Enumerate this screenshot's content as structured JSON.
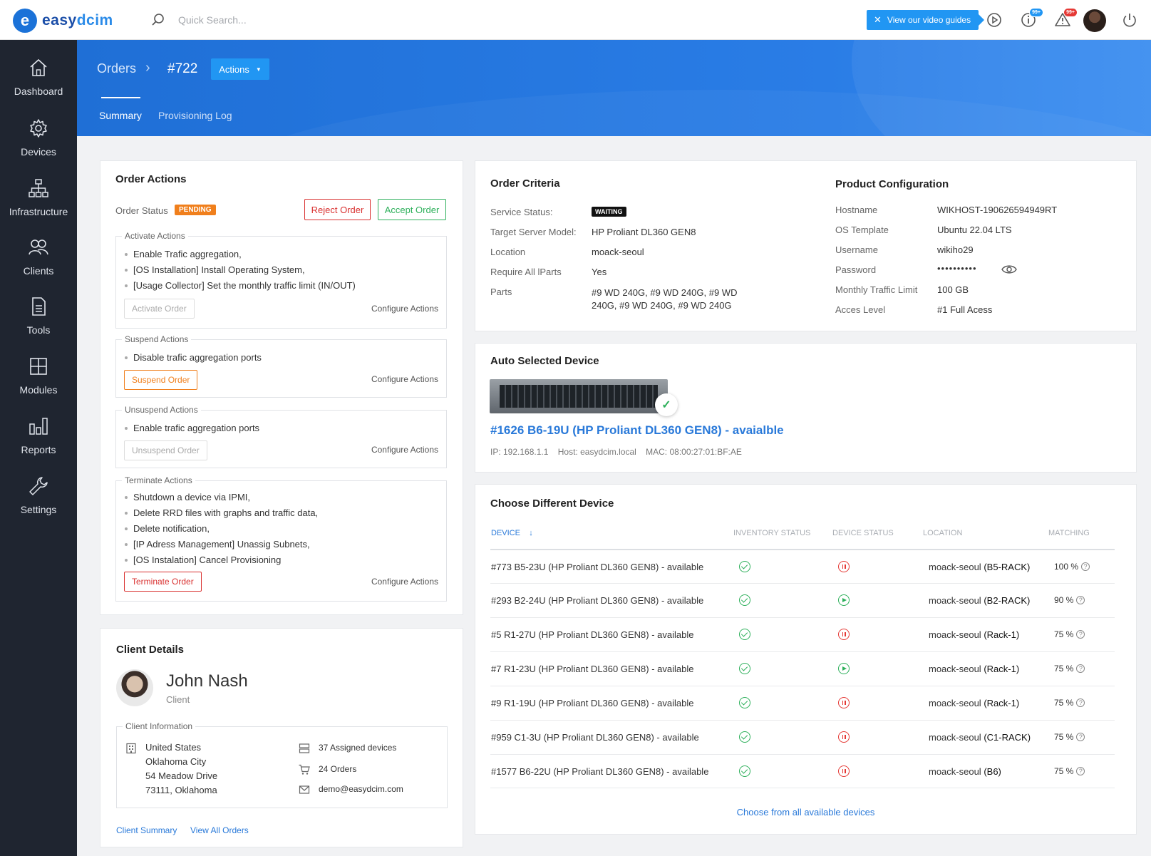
{
  "app": {
    "logo_letter": "e",
    "logo_text_a": "easy",
    "logo_text_b": "dcim"
  },
  "topbar": {
    "search_placeholder": "Quick Search...",
    "video_guides": "View our video guides",
    "info_badge": "99+",
    "alert_badge": "99+"
  },
  "sidebar": {
    "items": [
      {
        "label": "Dashboard",
        "icon": "home-icon"
      },
      {
        "label": "Devices",
        "icon": "gear-icon"
      },
      {
        "label": "Infrastructure",
        "icon": "sitemap-icon"
      },
      {
        "label": "Clients",
        "icon": "users-icon"
      },
      {
        "label": "Tools",
        "icon": "document-icon"
      },
      {
        "label": "Modules",
        "icon": "grid-icon"
      },
      {
        "label": "Reports",
        "icon": "bar-chart-icon"
      },
      {
        "label": "Settings",
        "icon": "wrench-icon"
      }
    ]
  },
  "header": {
    "breadcrumb_root": "Orders",
    "breadcrumb_sep": "›",
    "order_id": "#722",
    "actions_label": "Actions",
    "tabs": [
      {
        "label": "Summary",
        "active": true
      },
      {
        "label": "Provisioning Log",
        "active": false
      }
    ]
  },
  "order_actions": {
    "title": "Order Actions",
    "status_label": "Order Status",
    "status_value": "PENDING",
    "reject_label": "Reject Order",
    "accept_label": "Accept Order",
    "configure_label": "Configure Actions",
    "groups": [
      {
        "legend": "Activate Actions",
        "items": [
          "Enable Trafic aggregation,",
          "[OS Installation] Install Operating System,",
          "[Usage Collector] Set the monthly traffic limit (IN/OUT)"
        ],
        "button": "Activate Order"
      },
      {
        "legend": "Suspend Actions",
        "items": [
          "Disable trafic aggregation ports"
        ],
        "button": "Suspend Order"
      },
      {
        "legend": "Unsuspend Actions",
        "items": [
          "Enable trafic aggregation ports"
        ],
        "button": "Unsuspend Order"
      },
      {
        "legend": "Terminate Actions",
        "items": [
          "Shutdown a device via IPMI,",
          "Delete RRD files with graphs and traffic data,",
          "Delete notification,",
          "[IP Adress Management] Unassig Subnets,",
          "[OS Instalation] Cancel Provisioning"
        ],
        "button": "Terminate Order"
      }
    ]
  },
  "order_criteria": {
    "title": "Order Criteria",
    "rows": [
      {
        "label": "Service Status:",
        "value": "WAITING"
      },
      {
        "label": "Target Server Model:",
        "value": "HP Proliant DL360 GEN8"
      },
      {
        "label": "Location",
        "value": "moack-seoul"
      },
      {
        "label": "Require All lParts",
        "value": "Yes"
      },
      {
        "label": "Parts",
        "value": "#9 WD 240G, #9 WD 240G, #9 WD 240G,  #9 WD 240G, #9 WD 240G"
      }
    ]
  },
  "product_config": {
    "title": "Product Configuration",
    "rows": [
      {
        "label": "Hostname",
        "value": "WIKHOST-190626594949RT"
      },
      {
        "label": "OS Template",
        "value": "Ubuntu 22.04 LTS"
      },
      {
        "label": "Username",
        "value": "wikiho29"
      },
      {
        "label": "Password",
        "value": "••••••••••"
      },
      {
        "label": "Monthly Traffic Limit",
        "value": "100 GB"
      },
      {
        "label": "Acces Level",
        "value": "#1 Full Acess"
      }
    ]
  },
  "auto_device": {
    "title": "Auto Selected Device",
    "link": "#1626 B6-19U (HP Proliant DL360 GEN8) - avaialble",
    "ip": "IP: 192.168.1.1",
    "host": "Host: easydcim.local",
    "mac": "MAC: 08:00:27:01:BF:AE"
  },
  "choose_device": {
    "title": "Choose Different Device",
    "columns": {
      "device": "DEVICE",
      "sort_arrow": "↓",
      "inventory": "INVENTORY STATUS",
      "status": "DEVICE STATUS",
      "location": "LOCATION",
      "matching": "MATCHING"
    },
    "rows": [
      {
        "device": "#773 B5-23U (HP Proliant DL360 GEN8) - available",
        "inventory": "ok",
        "status": "paused",
        "loc_prefix": "moack-seoul",
        "loc_rack": "(B5-RACK)",
        "match": "100 %"
      },
      {
        "device": "#293 B2-24U (HP Proliant DL360 GEN8) - available",
        "inventory": "ok",
        "status": "running",
        "loc_prefix": "moack-seoul",
        "loc_rack": "(B2-RACK)",
        "match": "90 %"
      },
      {
        "device": "#5 R1-27U (HP Proliant DL360 GEN8) - available",
        "inventory": "ok",
        "status": "paused",
        "loc_prefix": "moack-seoul",
        "loc_rack": "(Rack-1)",
        "match": "75 %"
      },
      {
        "device": "#7 R1-23U (HP Proliant DL360 GEN8) - available",
        "inventory": "ok",
        "status": "running",
        "loc_prefix": "moack-seoul",
        "loc_rack": "(Rack-1)",
        "match": "75 %"
      },
      {
        "device": "#9 R1-19U (HP Proliant DL360 GEN8) - available",
        "inventory": "ok",
        "status": "paused",
        "loc_prefix": "moack-seoul",
        "loc_rack": "(Rack-1)",
        "match": "75 %"
      },
      {
        "device": "#959 C1-3U (HP Proliant DL360 GEN8) - available",
        "inventory": "ok",
        "status": "paused",
        "loc_prefix": "moack-seoul",
        "loc_rack": "(C1-RACK)",
        "match": "75 %"
      },
      {
        "device": "#1577 B6-22U (HP Proliant DL360 GEN8) - available",
        "inventory": "ok",
        "status": "paused",
        "loc_prefix": "moack-seoul",
        "loc_rack": "(B6)",
        "match": "75 %"
      }
    ],
    "qmark": "?",
    "choose_all": "Choose from all available devices"
  },
  "client": {
    "title": "Client Details",
    "name": "John Nash",
    "role": "Client",
    "info_legend": "Client Information",
    "address": [
      "United States",
      "Oklahoma City",
      "54 Meadow Drive",
      "73111, Oklahoma"
    ],
    "assigned_devices": "37 Assigned devices",
    "orders": "24 Orders",
    "email": "demo@easydcim.com",
    "summary_link": "Client Summary",
    "orders_link": "View All Orders"
  }
}
